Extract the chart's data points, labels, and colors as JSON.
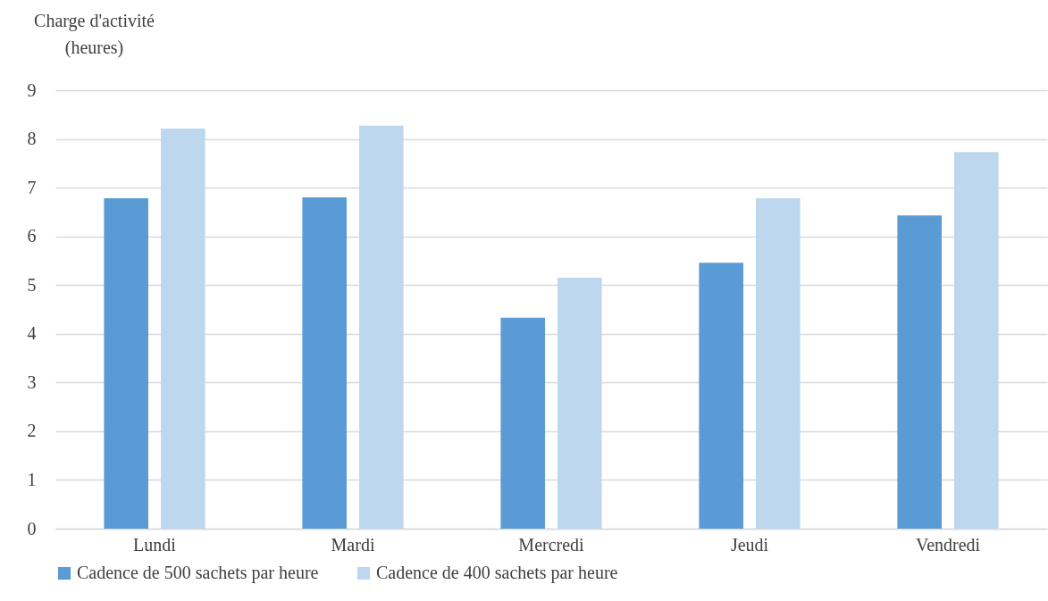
{
  "chart_data": {
    "type": "bar",
    "ylabel": "Charge d'activité\n(heures)",
    "categories": [
      "Lundi",
      "Mardi",
      "Mercredi",
      "Jeudi",
      "Vendredi"
    ],
    "series": [
      {
        "name": "Cadence de 500 sachets par heure",
        "color": "#5b9bd5",
        "values": [
          6.78,
          6.8,
          4.33,
          5.46,
          6.43
        ]
      },
      {
        "name": "Cadence de 400 sachets par heure",
        "color": "#bdd7ee",
        "values": [
          8.21,
          8.27,
          5.15,
          6.78,
          7.73
        ]
      }
    ],
    "ylim": [
      0,
      9
    ],
    "yticks": [
      0,
      1,
      2,
      3,
      4,
      5,
      6,
      7,
      8,
      9
    ],
    "grid": "y",
    "legend": "bottom"
  }
}
